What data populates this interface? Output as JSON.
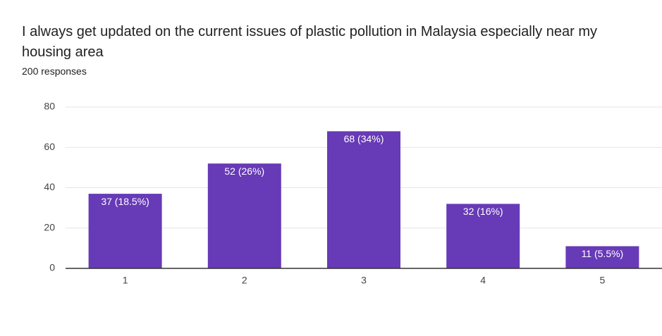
{
  "chart_data": {
    "type": "bar",
    "title": "I always get updated on the current issues of plastic pollution in Malaysia especially near my housing area",
    "subtitle": "200 responses",
    "categories": [
      "1",
      "2",
      "3",
      "4",
      "5"
    ],
    "values": [
      37,
      52,
      68,
      32,
      11
    ],
    "value_labels": [
      "37 (18.5%)",
      "52 (26%)",
      "68 (34%)",
      "32 (16%)",
      "11 (5.5%)"
    ],
    "color": "#673ab7",
    "ylim": [
      0,
      80
    ],
    "yticks": [
      0,
      20,
      40,
      60,
      80
    ],
    "grid": true
  }
}
